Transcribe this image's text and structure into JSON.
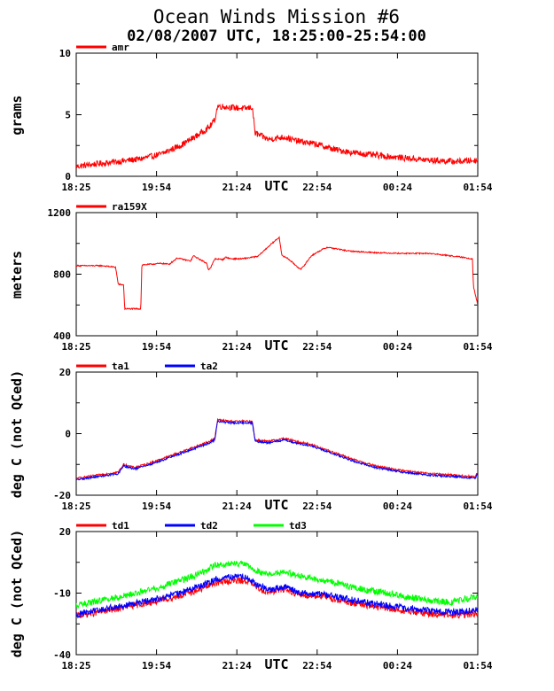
{
  "title": "Ocean Winds Mission #6",
  "subtitle": "02/08/2007  UTC, 18:25:00-25:54:00",
  "chart_data": [
    {
      "type": "line",
      "ylabel": "grams",
      "xlabel": "UTC",
      "ylim": [
        0,
        10
      ],
      "yticks": [
        "0",
        "5",
        "10"
      ],
      "xticks": [
        "18:25",
        "19:54",
        "21:24",
        "22:54",
        "00:24",
        "01:54"
      ],
      "xlim_hours": [
        18.4167,
        25.9
      ],
      "series": [
        {
          "name": "amr",
          "color": "#ff0000",
          "noise": 0.25,
          "x": [
            18.42,
            18.8,
            19.2,
            19.6,
            20.0,
            20.4,
            20.7,
            20.9,
            21.0,
            21.05,
            21.3,
            21.55,
            21.7,
            21.75,
            22.0,
            22.3,
            22.5,
            22.9,
            23.2,
            23.6,
            24.0,
            24.5,
            25.0,
            25.5,
            25.9
          ],
          "y": [
            0.8,
            1.0,
            1.2,
            1.4,
            1.8,
            2.6,
            3.4,
            4.0,
            4.6,
            5.7,
            5.6,
            5.5,
            5.6,
            3.5,
            3.0,
            3.2,
            2.9,
            2.6,
            2.2,
            1.9,
            1.7,
            1.5,
            1.3,
            1.2,
            1.3
          ]
        }
      ]
    },
    {
      "type": "line",
      "ylabel": "meters",
      "xlabel": "UTC",
      "ylim": [
        400,
        1200
      ],
      "yticks": [
        "400",
        "800",
        "1200"
      ],
      "xticks": [
        "18:25",
        "19:54",
        "21:24",
        "22:54",
        "00:24",
        "01:54"
      ],
      "xlim_hours": [
        18.4167,
        25.9
      ],
      "series": [
        {
          "name": "ra159X",
          "color": "#ff0000",
          "noise": 4,
          "x": [
            18.42,
            18.9,
            19.15,
            19.2,
            19.3,
            19.32,
            19.62,
            19.64,
            20.0,
            20.15,
            20.3,
            20.55,
            20.6,
            20.85,
            20.88,
            20.92,
            21.0,
            21.15,
            21.2,
            21.3,
            21.5,
            21.8,
            22.0,
            22.2,
            22.25,
            22.35,
            22.6,
            22.65,
            22.8,
            23.0,
            23.1,
            23.5,
            24.0,
            24.5,
            25.0,
            25.5,
            25.8,
            25.82,
            25.9
          ],
          "y": [
            855,
            855,
            845,
            735,
            730,
            575,
            575,
            860,
            870,
            865,
            905,
            885,
            920,
            870,
            830,
            840,
            900,
            895,
            910,
            900,
            900,
            915,
            980,
            1040,
            920,
            905,
            830,
            850,
            920,
            960,
            975,
            950,
            940,
            935,
            935,
            915,
            900,
            720,
            600
          ]
        }
      ]
    },
    {
      "type": "line",
      "ylabel": "deg C (not QCed)",
      "xlabel": "UTC",
      "ylim": [
        -20,
        20
      ],
      "yticks": [
        "-20",
        "0",
        "20"
      ],
      "xticks": [
        "18:25",
        "19:54",
        "21:24",
        "22:54",
        "00:24",
        "01:54"
      ],
      "xlim_hours": [
        18.4167,
        25.9
      ],
      "series": [
        {
          "name": "ta1",
          "color": "#ff0000",
          "noise": 0.3,
          "x": [
            18.42,
            18.8,
            19.2,
            19.3,
            19.5,
            19.8,
            20.2,
            20.6,
            20.9,
            21.0,
            21.05,
            21.3,
            21.6,
            21.7,
            21.75,
            22.0,
            22.3,
            22.5,
            22.8,
            23.2,
            23.6,
            24.0,
            24.5,
            25.0,
            25.5,
            25.85,
            25.9
          ],
          "y": [
            -14.5,
            -13.5,
            -12.5,
            -10.0,
            -11.0,
            -9.5,
            -7.0,
            -4.5,
            -2.5,
            -1.5,
            4.5,
            4.0,
            4.0,
            4.0,
            -2.0,
            -2.5,
            -1.5,
            -2.5,
            -3.5,
            -6.0,
            -8.5,
            -10.5,
            -12.0,
            -13.0,
            -13.5,
            -14.0,
            -12.5
          ]
        },
        {
          "name": "ta2",
          "color": "#0000ff",
          "noise": 0.3,
          "x": [
            18.42,
            18.8,
            19.2,
            19.3,
            19.5,
            19.8,
            20.2,
            20.6,
            20.9,
            21.0,
            21.05,
            21.3,
            21.6,
            21.7,
            21.75,
            22.0,
            22.3,
            22.5,
            22.8,
            23.2,
            23.6,
            24.0,
            24.5,
            25.0,
            25.5,
            25.85,
            25.9
          ],
          "y": [
            -15.0,
            -14.0,
            -13.0,
            -10.5,
            -11.5,
            -10.0,
            -7.5,
            -5.0,
            -3.0,
            -2.0,
            4.0,
            3.5,
            3.5,
            3.5,
            -2.5,
            -3.0,
            -2.0,
            -3.0,
            -4.0,
            -6.5,
            -9.0,
            -11.0,
            -12.5,
            -13.5,
            -14.0,
            -14.5,
            -13.0
          ]
        }
      ]
    },
    {
      "type": "line",
      "ylabel": "deg C (not QCed)",
      "xlabel": "UTC",
      "ylim": [
        -40,
        20
      ],
      "yticks": [
        "-40",
        "-10",
        "20"
      ],
      "xticks": [
        "18:25",
        "19:54",
        "21:24",
        "22:54",
        "00:24",
        "01:54"
      ],
      "xlim_hours": [
        18.4167,
        25.9
      ],
      "series": [
        {
          "name": "td1",
          "color": "#ff0000",
          "noise": 1.6,
          "x": [
            18.42,
            18.8,
            19.2,
            19.6,
            20.0,
            20.4,
            20.8,
            21.0,
            21.3,
            21.6,
            21.8,
            22.0,
            22.3,
            22.6,
            23.0,
            23.4,
            23.8,
            24.2,
            24.6,
            25.0,
            25.4,
            25.9
          ],
          "y": [
            -21.0,
            -19.5,
            -17.5,
            -15.5,
            -13.5,
            -11.0,
            -7.5,
            -5.0,
            -4.0,
            -4.0,
            -7.5,
            -9.5,
            -8.0,
            -11.0,
            -11.5,
            -14.0,
            -16.0,
            -17.5,
            -19.0,
            -20.0,
            -21.0,
            -20.0
          ]
        },
        {
          "name": "td2",
          "color": "#0000ff",
          "noise": 1.6,
          "x": [
            18.42,
            18.8,
            19.2,
            19.6,
            20.0,
            20.4,
            20.8,
            21.0,
            21.3,
            21.6,
            21.8,
            22.0,
            22.3,
            22.6,
            23.0,
            23.4,
            23.8,
            24.2,
            24.6,
            25.0,
            25.4,
            25.9
          ],
          "y": [
            -20.5,
            -18.5,
            -16.5,
            -14.5,
            -12.5,
            -9.5,
            -6.0,
            -3.5,
            -2.0,
            -2.5,
            -6.0,
            -8.5,
            -7.0,
            -10.0,
            -10.5,
            -12.5,
            -14.5,
            -16.0,
            -17.5,
            -18.5,
            -19.5,
            -18.0
          ]
        },
        {
          "name": "td3",
          "color": "#00ff00",
          "noise": 1.6,
          "x": [
            18.42,
            18.8,
            19.2,
            19.6,
            20.0,
            20.4,
            20.8,
            21.0,
            21.3,
            21.6,
            21.8,
            22.0,
            22.3,
            22.6,
            23.0,
            23.4,
            23.8,
            24.2,
            24.6,
            25.0,
            25.4,
            25.9
          ],
          "y": [
            -16.0,
            -14.0,
            -12.0,
            -9.5,
            -7.0,
            -3.5,
            0.5,
            3.5,
            4.5,
            4.0,
            0.5,
            -1.0,
            0.5,
            -2.0,
            -3.5,
            -6.0,
            -8.5,
            -10.0,
            -12.0,
            -13.5,
            -14.5,
            -11.5
          ]
        }
      ]
    }
  ]
}
